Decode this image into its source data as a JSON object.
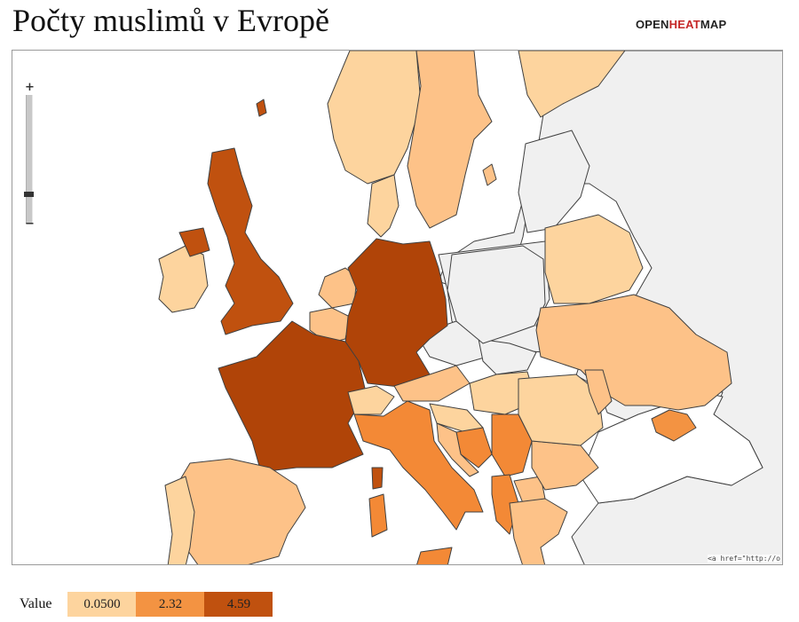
{
  "page": {
    "title": "Počty muslimů v Evropě",
    "brand": {
      "part1": "OPEN",
      "part2": "HEAT",
      "part3": "MAP"
    }
  },
  "colors": {
    "low": "#fdd49e",
    "mid": "#f39342",
    "high": "#c0510f",
    "darkest": "#b04408",
    "no_data": "#f0f0f0",
    "sea": "#ffffff",
    "border": "#404040",
    "brand_red": "#c62828"
  },
  "zoom": {
    "plus_symbol": "+",
    "minus_symbol": "−"
  },
  "map": {
    "attribution": "<a href=\"http://o"
  },
  "legend": {
    "label": "Value",
    "stops": [
      {
        "value": "0.0500",
        "color": "#fdd49e"
      },
      {
        "value": "2.32",
        "color": "#f39342"
      },
      {
        "value": "4.59",
        "color": "#c0510f"
      }
    ]
  }
}
